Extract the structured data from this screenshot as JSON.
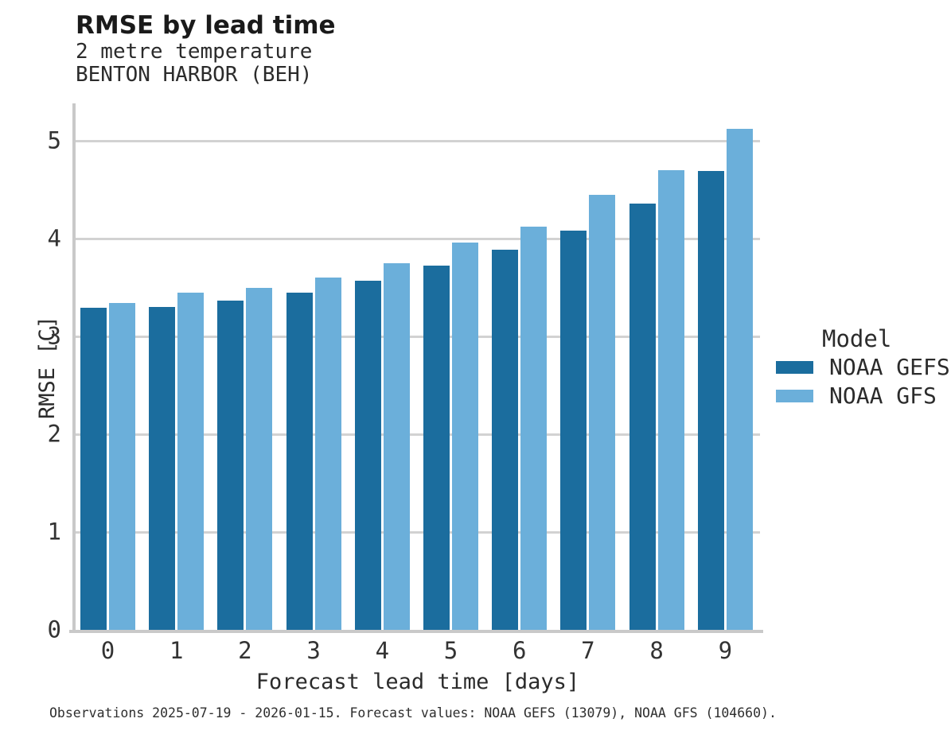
{
  "header": {
    "title": "RMSE by lead time",
    "subtitle_line1": "2 metre temperature",
    "subtitle_line2": "BENTON HARBOR (BEH)"
  },
  "chart_data": {
    "type": "bar",
    "title": "RMSE by lead time",
    "subtitle": [
      "2 metre temperature",
      "BENTON HARBOR (BEH)"
    ],
    "categories": [
      "0",
      "1",
      "2",
      "3",
      "4",
      "5",
      "6",
      "7",
      "8",
      "9"
    ],
    "series": [
      {
        "name": "NOAA GEFS",
        "color": "#1b6d9e",
        "values": [
          3.29,
          3.3,
          3.37,
          3.45,
          3.57,
          3.72,
          3.89,
          4.08,
          4.36,
          4.69
        ]
      },
      {
        "name": "NOAA GFS",
        "color": "#6bafda",
        "values": [
          3.34,
          3.45,
          3.5,
          3.6,
          3.75,
          3.96,
          4.12,
          4.45,
          4.7,
          5.12
        ]
      }
    ],
    "xlabel": "Forecast lead time [days]",
    "ylabel": "RMSE [C]",
    "yticks": [
      0,
      1,
      2,
      3,
      4,
      5
    ],
    "ylim": [
      0,
      5.38
    ],
    "grid": "horizontal-only",
    "legend_position": "right-outside"
  },
  "legend": {
    "title": "Model",
    "items": [
      {
        "label": "NOAA GEFS",
        "color": "#1b6d9e"
      },
      {
        "label": "NOAA GFS",
        "color": "#6bafda"
      }
    ]
  },
  "caption": "Observations 2025-07-19 - 2026-01-15. Forecast values: NOAA GEFS (13079), NOAA GFS (104660).",
  "colors": {
    "gridline": "#d2d2d2",
    "spine": "#c9c9c9",
    "background": "#ffffff"
  }
}
